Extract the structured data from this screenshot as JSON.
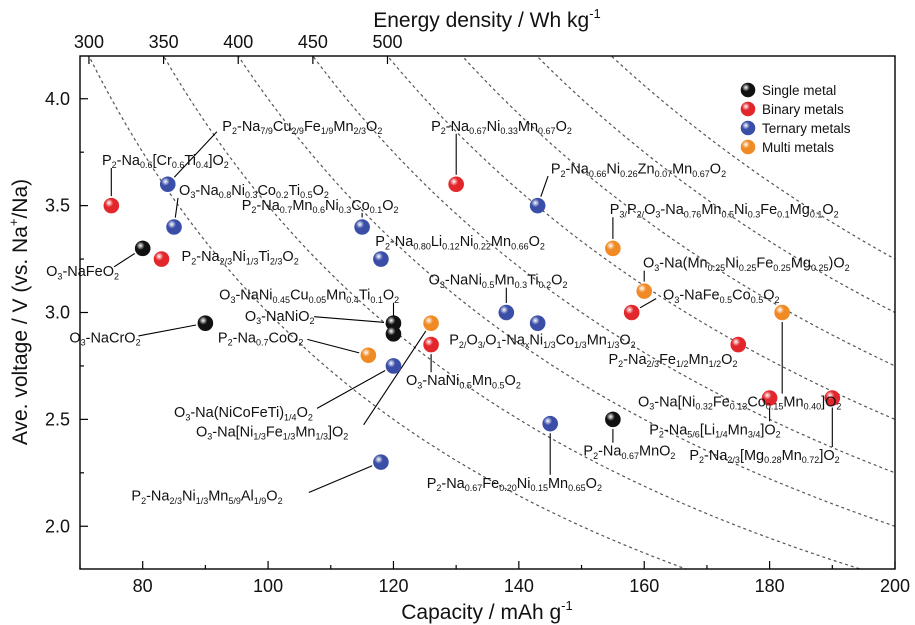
{
  "chart_data": {
    "type": "scatter",
    "xlabel": "Capacity / mAh g-1",
    "ylabel": "Ave. voltage / V (vs. Na+/Na)",
    "x2label": "Energy density / Wh kg-1",
    "xlim": [
      70,
      200
    ],
    "ylim": [
      1.8,
      4.2
    ],
    "x_ticks": [
      80,
      100,
      120,
      140,
      160,
      180,
      200
    ],
    "y_ticks": [
      2.0,
      2.5,
      3.0,
      3.5,
      4.0
    ],
    "energy_density_ticks": [
      300,
      350,
      400,
      450,
      500
    ],
    "energy_density_isolines": [
      300,
      350,
      400,
      450,
      500,
      550,
      600,
      650
    ],
    "energy_density_top_voltage": 4.2,
    "grid": false,
    "legend_position": "top-right",
    "series": [
      {
        "name": "Single metal",
        "color": "#111111",
        "points": [
          {
            "x": 80,
            "y": 3.3,
            "label": "O3-NaFeO2",
            "label_x": 64.6,
            "label_y": 3.17
          },
          {
            "x": 90,
            "y": 2.95,
            "label": "O3-NaCrO2",
            "label_x": 68.3,
            "label_y": 2.86
          },
          {
            "x": 120,
            "y": 2.95,
            "label": "O3-NaNiO2",
            "label_x": 96.3,
            "label_y": 2.96
          },
          {
            "x": 120,
            "y": 2.9,
            "label": "O3-NaNi0.45Cu0.05Mn0.4Ti0.1O2",
            "label_x": 92.2,
            "label_y": 3.06
          },
          {
            "x": 155,
            "y": 2.5,
            "label": "P2-Na0.67MnO2",
            "label_x": 150.3,
            "label_y": 2.33
          }
        ]
      },
      {
        "name": "Binary metals",
        "color": "#e2262b",
        "points": [
          {
            "x": 75,
            "y": 3.5,
            "label": "P2-Na0.6[Cr0.6Ti0.4]O2",
            "label_x": 73.5,
            "label_y": 3.69
          },
          {
            "x": 83,
            "y": 3.25,
            "label": "P2-Na2/3Ni1/3Ti2/3O2",
            "label_x": 86.2,
            "label_y": 3.24
          },
          {
            "x": 130,
            "y": 3.6,
            "label": "P2-Na0.67Ni0.33Mn0.67O2",
            "label_x": 126.0,
            "label_y": 3.85
          },
          {
            "x": 126,
            "y": 2.85,
            "label": "O3-NaNi0.5Mn0.5O2",
            "label_x": 122.0,
            "label_y": 2.66
          },
          {
            "x": 158,
            "y": 3.0,
            "label": "O3-NaFe0.5Co0.5O2",
            "label_x": 163.0,
            "label_y": 3.06
          },
          {
            "x": 175,
            "y": 2.85,
            "label": "P2-Na2/3Fe1/2Mn1/2O2",
            "label_x": 154.3,
            "label_y": 2.76
          },
          {
            "x": 180,
            "y": 2.6,
            "label": "P2-Na5/6[Li1/4Mn3/4]O2",
            "label_x": 160.8,
            "label_y": 2.43
          },
          {
            "x": 190,
            "y": 2.6,
            "label": "P2-Na2/3[Mg0.28Mn0.72]O2",
            "label_x": 167.2,
            "label_y": 2.31
          }
        ]
      },
      {
        "name": "Ternary metals",
        "color": "#3a4ea7",
        "points": [
          {
            "x": 84,
            "y": 3.6,
            "label": "P2-Na7/9Cu2/9Fe1/9Mn2/3O2",
            "label_x": 92.7,
            "label_y": 3.85
          },
          {
            "x": 85,
            "y": 3.4,
            "label": "O3-Na0.8Ni0.3Co0.2Ti0.5O2",
            "label_x": 85.8,
            "label_y": 3.55
          },
          {
            "x": 115,
            "y": 3.4,
            "label": "P2-Na0.7Mn0.6Ni0.3Co0.1O2",
            "label_x": 95.8,
            "label_y": 3.48
          },
          {
            "x": 118,
            "y": 3.25,
            "label": "P2-Na0.80Li0.12Ni0.22Mn0.66O2",
            "label_x": 117.1,
            "label_y": 3.31
          },
          {
            "x": 143,
            "y": 3.5,
            "label": "P2-Na0.66Ni0.26Zn0.07Mn0.67O2",
            "label_x": 145.1,
            "label_y": 3.65
          },
          {
            "x": 138,
            "y": 3.0,
            "label": "O3-NaNi0.5Mn0.3Ti0.2O2",
            "label_x": 125.6,
            "label_y": 3.13
          },
          {
            "x": 143,
            "y": 2.95,
            "label": "P2/O3/O1-NaxNi1/3Co1/3Mn1/3O2",
            "label_x": 128.9,
            "label_y": 2.85
          },
          {
            "x": 120,
            "y": 2.75,
            "label": "O3-Na(NiCoFeTi)1/4O2",
            "label_x": 85.0,
            "label_y": 2.51
          },
          {
            "x": 145,
            "y": 2.48,
            "label": "P2-Na0.67Fe0.20Ni0.15Mn0.65O2",
            "label_x": 125.3,
            "label_y": 2.18
          },
          {
            "x": 118,
            "y": 2.3,
            "label": "P2-Na2/3Ni1/3Mn5/9Al1/9O2",
            "label_x": 78.2,
            "label_y": 2.12
          }
        ]
      },
      {
        "name": "Multi metals",
        "color": "#f08a24",
        "points": [
          {
            "x": 126,
            "y": 2.95,
            "label": "O3-Na[Ni1/3Fe1/3Mn1/3]O2",
            "label_x": 88.5,
            "label_y": 2.42
          },
          {
            "x": 116,
            "y": 2.8,
            "label": "P2-Na0.7CoO2",
            "label_x": 92.0,
            "label_y": 2.86
          },
          {
            "x": 155,
            "y": 3.3,
            "label": "P3/P2/O3-Na0.76Mn0.5Ni0.3Fe0.1Mg0.1O2",
            "label_x": 154.5,
            "label_y": 3.46
          },
          {
            "x": 160,
            "y": 3.1,
            "label": "O3-Na(Mn0.25Ni0.25Fe0.25Mg0.25)O2",
            "label_x": 159.8,
            "label_y": 3.21
          },
          {
            "x": 182,
            "y": 3.0,
            "label": "O3-Na[Ni0.32Fe0.13Co0.15Mn0.40]O2",
            "label_x": 159.0,
            "label_y": 2.56
          }
        ]
      }
    ]
  }
}
